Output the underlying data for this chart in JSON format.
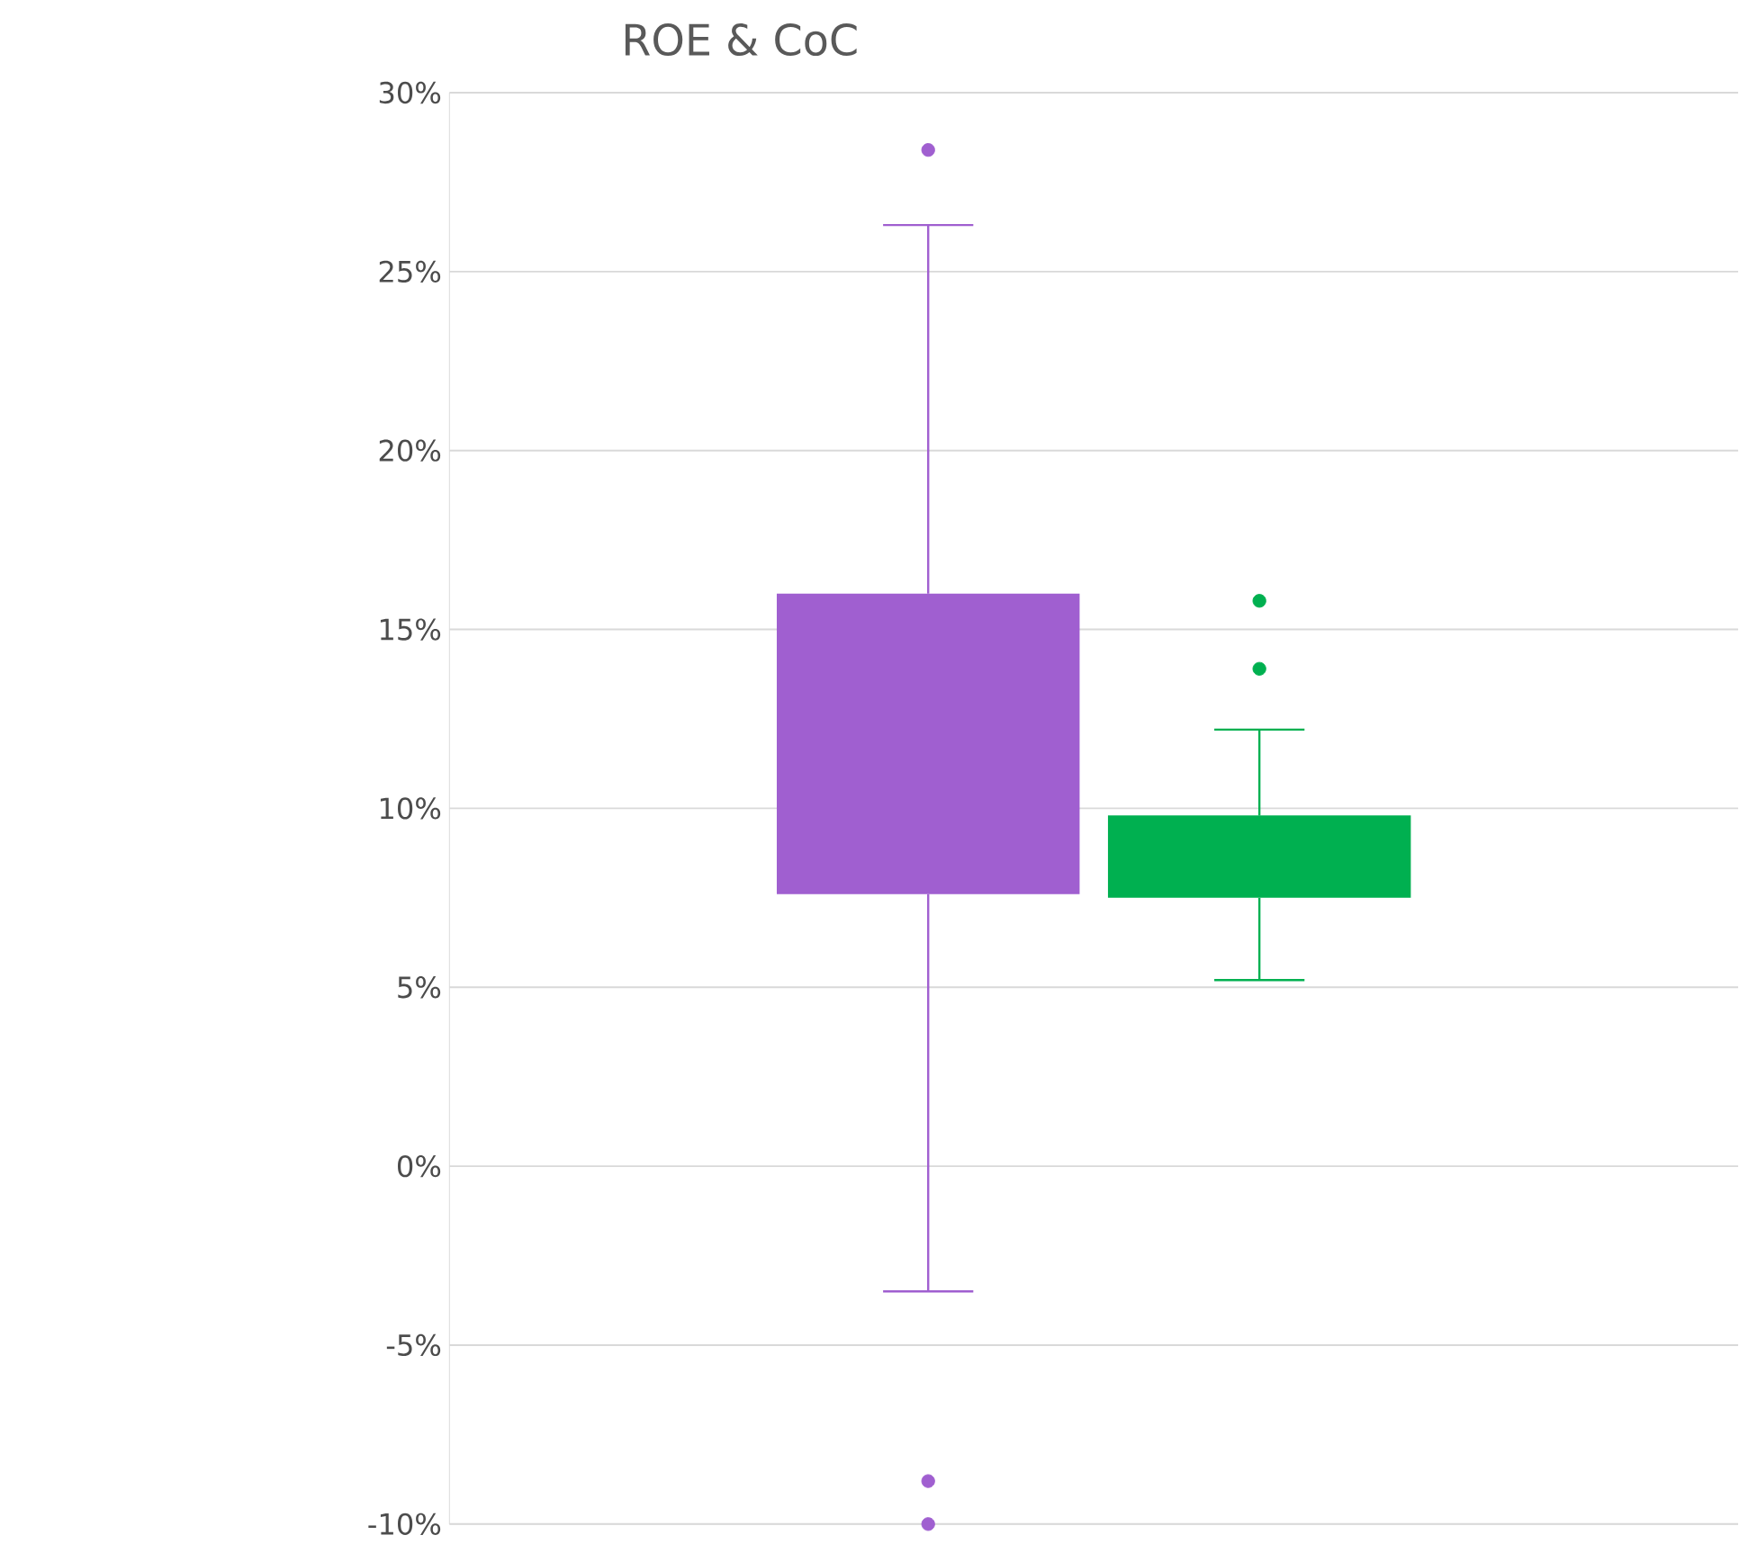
{
  "chart_data": {
    "type": "box",
    "title": "ROE & CoC",
    "categories": [
      null
    ],
    "series": [
      {
        "color": "#a05fd0",
        "boxes": [
          {
            "low": -3.5,
            "q1": 7.6,
            "median": null,
            "q3": 16.0,
            "high": 26.3,
            "outliers": [
              28.4,
              -8.8,
              -10.0
            ]
          }
        ]
      },
      {
        "color": "#00b050",
        "boxes": [
          {
            "low": 5.2,
            "q1": 7.5,
            "median": null,
            "q3": 9.8,
            "high": 12.2,
            "outliers": [
              15.8,
              13.9
            ]
          }
        ]
      }
    ],
    "ylim": [
      -10,
      30
    ],
    "yticks": [
      {
        "value": -10,
        "label": "-10%"
      },
      {
        "value": -5,
        "label": "-5%"
      },
      {
        "value": 0,
        "label": "0%"
      },
      {
        "value": 5,
        "label": "5%"
      },
      {
        "value": 10,
        "label": "10%"
      },
      {
        "value": 15,
        "label": "15%"
      },
      {
        "value": 20,
        "label": "20%"
      },
      {
        "value": 25,
        "label": "25%"
      },
      {
        "value": 30,
        "label": "30%"
      }
    ],
    "grid": "y"
  }
}
